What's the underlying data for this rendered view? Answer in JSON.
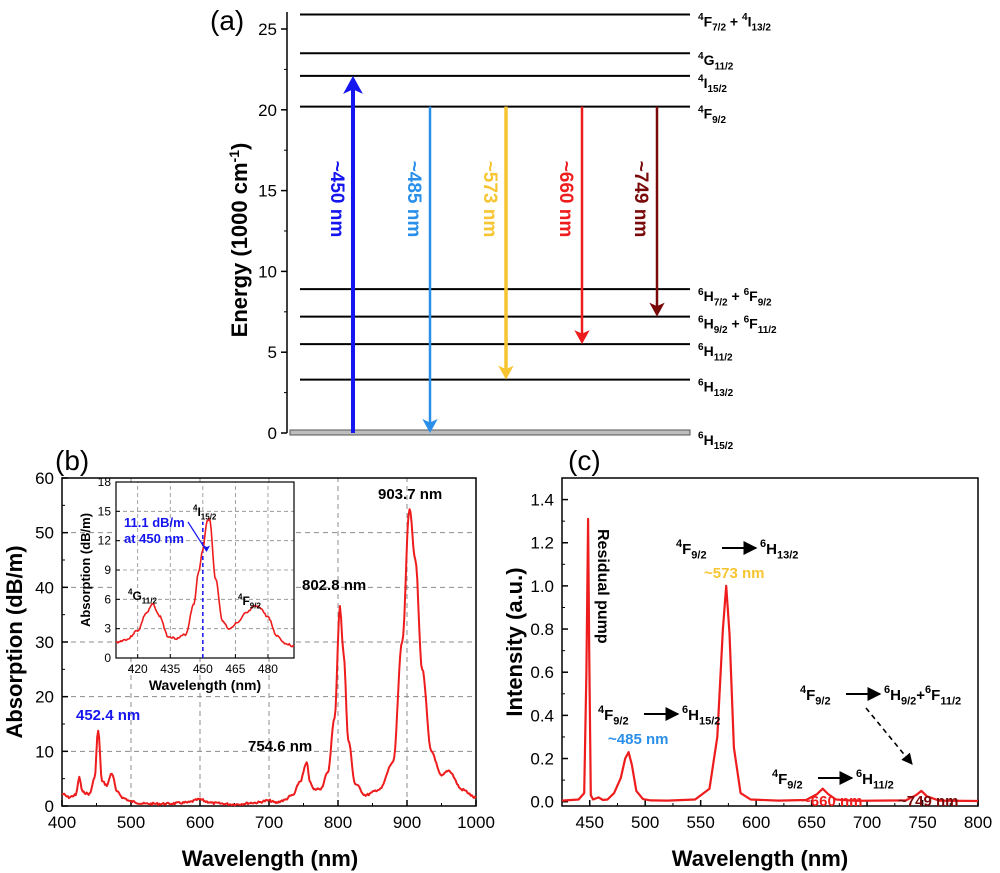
{
  "colors": {
    "blue": "#1515f0",
    "light_blue": "#2a8fe8",
    "yellow": "#f7c531",
    "red": "#ee1c1c",
    "dark_red": "#7a0a0a",
    "black": "#000000",
    "grid": "#8c8c8c",
    "ground": "#bdbdbd"
  },
  "chart_data": [
    {
      "type": "diagram",
      "panel_label": "(a)",
      "ylabel": "Energy (1000 cm",
      "ylabel_sup": "-1",
      "ylabel_close": ")",
      "ylim": [
        0,
        26
      ],
      "yticks": [
        "0",
        "5",
        "10",
        "15",
        "20",
        "25"
      ],
      "levels": [
        {
          "energy": 0.0,
          "term": "6H15/2",
          "label": [
            [
              "6",
              "sup"
            ],
            [
              "H",
              "n"
            ],
            [
              "15/2",
              "sub"
            ]
          ]
        },
        {
          "energy": 3.3,
          "term": "6H13/2",
          "label": [
            [
              "6",
              "sup"
            ],
            [
              "H",
              "n"
            ],
            [
              "13/2",
              "sub"
            ]
          ]
        },
        {
          "energy": 5.5,
          "term": "6H11/2",
          "label": [
            [
              "6",
              "sup"
            ],
            [
              "H",
              "n"
            ],
            [
              "11/2",
              "sub"
            ]
          ]
        },
        {
          "energy": 7.2,
          "term": "6H9/2 + 6F11/2",
          "label": [
            [
              "6",
              "sup"
            ],
            [
              "H",
              "n"
            ],
            [
              "9/2",
              "sub"
            ],
            [
              " + ",
              "n"
            ],
            [
              "6",
              "sup"
            ],
            [
              "F",
              "n"
            ],
            [
              "11/2",
              "sub"
            ]
          ]
        },
        {
          "energy": 8.9,
          "term": "6H7/2 + 6F9/2",
          "label": [
            [
              "6",
              "sup"
            ],
            [
              "H",
              "n"
            ],
            [
              "7/2",
              "sub"
            ],
            [
              " + ",
              "n"
            ],
            [
              "6",
              "sup"
            ],
            [
              "F",
              "n"
            ],
            [
              "9/2",
              "sub"
            ]
          ]
        },
        {
          "energy": 20.2,
          "term": "4F9/2",
          "label": [
            [
              "4",
              "sup"
            ],
            [
              "F",
              "n"
            ],
            [
              "9/2",
              "sub"
            ]
          ]
        },
        {
          "energy": 22.1,
          "term": "4I15/2",
          "label": [
            [
              "4",
              "sup"
            ],
            [
              "I",
              "n"
            ],
            [
              "15/2",
              "sub"
            ]
          ]
        },
        {
          "energy": 23.5,
          "term": "4G11/2",
          "label": [
            [
              "4",
              "sup"
            ],
            [
              "G",
              "n"
            ],
            [
              "11/2",
              "sub"
            ]
          ]
        },
        {
          "energy": 25.9,
          "term": "4F7/2 + 4I13/2",
          "label": [
            [
              "4",
              "sup"
            ],
            [
              "F",
              "n"
            ],
            [
              "7/2",
              "sub"
            ],
            [
              " + ",
              "n"
            ],
            [
              "4",
              "sup"
            ],
            [
              "I",
              "n"
            ],
            [
              "13/2",
              "sub"
            ]
          ]
        }
      ],
      "transitions": [
        {
          "label": "~450 nm",
          "from": 0.0,
          "to": 22.1,
          "direction": "up",
          "color": "blue"
        },
        {
          "label": "~485 nm",
          "from": 20.2,
          "to": 0.0,
          "direction": "down",
          "color": "light_blue"
        },
        {
          "label": "~573 nm",
          "from": 20.2,
          "to": 3.3,
          "direction": "down",
          "color": "yellow"
        },
        {
          "label": "~660 nm",
          "from": 20.2,
          "to": 5.5,
          "direction": "down",
          "color": "red"
        },
        {
          "label": "~749 nm",
          "from": 20.2,
          "to": 7.2,
          "direction": "down",
          "color": "dark_red"
        }
      ]
    },
    {
      "type": "line",
      "panel_label": "(b)",
      "xlabel": "Wavelength (nm)",
      "ylabel": "Absorption (dB/m)",
      "xlim": [
        400,
        1000
      ],
      "ylim": [
        0,
        60
      ],
      "xticks": [
        "400",
        "500",
        "600",
        "700",
        "800",
        "900",
        "1000"
      ],
      "yticks": [
        "0",
        "10",
        "20",
        "30",
        "40",
        "50",
        "60"
      ],
      "grid": "dashed",
      "series": [
        {
          "color": "red",
          "x": [
            400,
            410,
            420,
            425,
            430,
            440,
            447,
            452.4,
            458,
            465,
            472,
            480,
            490,
            500,
            520,
            550,
            580,
            600,
            610,
            620,
            650,
            680,
            700,
            710,
            720,
            735,
            745,
            754.6,
            760,
            765,
            775,
            785,
            795,
            802.8,
            808,
            815,
            825,
            840,
            860,
            880,
            893,
            903.7,
            912,
            922,
            935,
            950,
            960,
            980,
            1000
          ],
          "y": [
            2.2,
            1.6,
            2.0,
            5.2,
            2.5,
            2.2,
            5.0,
            13.8,
            4.5,
            3.8,
            6.0,
            2.5,
            1.4,
            0.8,
            0.4,
            0.4,
            0.6,
            1.2,
            0.8,
            0.5,
            0.3,
            0.6,
            1.0,
            0.6,
            1.0,
            2.0,
            4.5,
            7.8,
            4.2,
            3.0,
            3.2,
            6.0,
            16.0,
            36.5,
            28.0,
            12.0,
            4.0,
            2.0,
            3.0,
            8.0,
            30.0,
            54.5,
            45.0,
            25.0,
            10.0,
            5.5,
            6.5,
            3.0,
            1.5
          ]
        }
      ],
      "annotations": [
        {
          "text": "452.4 nm",
          "x": 452.4,
          "y": 13.8,
          "color": "blue"
        },
        {
          "text": "754.6 nm",
          "x": 754.6,
          "y": 7.8,
          "color": "black"
        },
        {
          "text": "802.8 nm",
          "x": 802.8,
          "y": 36.5,
          "color": "black"
        },
        {
          "text": "903.7 nm",
          "x": 903.7,
          "y": 54.5,
          "color": "black"
        }
      ],
      "inset": {
        "xlabel": "Wavelength (nm)",
        "ylabel": "Absorption (dB/m)",
        "xlim": [
          410,
          492
        ],
        "ylim": [
          0,
          18
        ],
        "xticks": [
          "420",
          "435",
          "450",
          "465",
          "480"
        ],
        "yticks": [
          "0",
          "3",
          "6",
          "9",
          "12",
          "15",
          "18"
        ],
        "grid": "dashed",
        "marker_x": 450,
        "annotation_lines": [
          "11.1 dB/m",
          "at 450 nm"
        ],
        "annotation_y": 11.1,
        "series": [
          {
            "color": "red",
            "x": [
              410,
              415,
              420,
              424,
              427,
              430,
              434,
              438,
              442,
              446,
              448,
              450,
              452,
              453,
              456,
              459,
              462,
              466,
              470,
              474,
              476,
              480,
              484,
              488,
              492
            ],
            "y": [
              1.6,
              1.9,
              2.8,
              4.6,
              5.5,
              4.3,
              2.2,
              2.0,
              2.4,
              5.6,
              8.8,
              11.1,
              14.0,
              14.2,
              8.0,
              3.8,
              3.0,
              3.6,
              4.6,
              5.3,
              5.2,
              4.2,
              2.3,
              1.5,
              1.2
            ]
          }
        ],
        "peak_labels": [
          {
            "x": 427,
            "y": 5.5,
            "label": [
              [
                "4",
                "sup"
              ],
              [
                "G",
                "n"
              ],
              [
                "11/2",
                "sub"
              ]
            ]
          },
          {
            "x": 452.4,
            "y": 14.2,
            "label": [
              [
                "4",
                "sup"
              ],
              [
                "I",
                "n"
              ],
              [
                "15/2",
                "sub"
              ]
            ]
          },
          {
            "x": 474,
            "y": 5.3,
            "label": [
              [
                "4",
                "sup"
              ],
              [
                "F",
                "n"
              ],
              [
                "9/2",
                "sub"
              ]
            ]
          }
        ]
      }
    },
    {
      "type": "line",
      "panel_label": "(c)",
      "xlabel": "Wavelength (nm)",
      "ylabel": "Intensity (a.u.)",
      "xlim": [
        425,
        800
      ],
      "ylim": [
        -0.02,
        1.5
      ],
      "xticks": [
        "450",
        "500",
        "550",
        "600",
        "650",
        "700",
        "750",
        "800"
      ],
      "yticks": [
        "0.0",
        "0.2",
        "0.4",
        "0.6",
        "0.8",
        "1.0",
        "1.2",
        "1.4"
      ],
      "grid": "none",
      "series": [
        {
          "color": "red",
          "x": [
            425,
            440,
            445,
            447,
            448.5,
            449.5,
            451,
            453,
            458,
            462,
            466,
            472,
            478,
            482,
            485,
            488,
            492,
            498,
            505,
            520,
            545,
            558,
            565,
            570,
            573,
            576,
            580,
            586,
            595,
            620,
            645,
            655,
            660,
            665,
            672,
            690,
            735,
            744,
            749,
            754,
            765,
            800
          ],
          "y": [
            0.005,
            0.01,
            0.04,
            0.6,
            1.31,
            0.7,
            0.03,
            0.01,
            0.02,
            0.008,
            0.01,
            0.04,
            0.11,
            0.2,
            0.23,
            0.17,
            0.05,
            0.012,
            0.006,
            0.005,
            0.01,
            0.06,
            0.3,
            0.8,
            1.0,
            0.78,
            0.25,
            0.04,
            0.01,
            0.005,
            0.008,
            0.035,
            0.06,
            0.035,
            0.01,
            0.004,
            0.006,
            0.03,
            0.05,
            0.025,
            0.005,
            0.003
          ]
        }
      ],
      "annotations": [
        {
          "text": "Residual pump",
          "x": 448.5,
          "y": 1.31,
          "rotated": true,
          "color": "black"
        },
        {
          "text": "~573 nm",
          "x": 573,
          "y": 1.0,
          "color": "yellow",
          "transition": [
            [
              [
                "4",
                "sup"
              ],
              [
                "F",
                "n"
              ],
              [
                "9/2",
                "sub"
              ]
            ],
            [
              [
                "6",
                "sup"
              ],
              [
                "H",
                "n"
              ],
              [
                "13/2",
                "sub"
              ]
            ]
          ]
        },
        {
          "text": "~485 nm",
          "x": 485,
          "y": 0.23,
          "color": "light_blue",
          "transition": [
            [
              [
                "4",
                "sup"
              ],
              [
                "F",
                "n"
              ],
              [
                "9/2",
                "sub"
              ]
            ],
            [
              [
                "6",
                "sup"
              ],
              [
                "H",
                "n"
              ],
              [
                "15/2",
                "sub"
              ]
            ]
          ]
        },
        {
          "text": "~660 nm",
          "x": 660,
          "y": 0.06,
          "color": "red",
          "transition": [
            [
              [
                "4",
                "sup"
              ],
              [
                "F",
                "n"
              ],
              [
                "9/2",
                "sub"
              ]
            ],
            [
              [
                "6",
                "sup"
              ],
              [
                "H",
                "n"
              ],
              [
                "11/2",
                "sub"
              ]
            ]
          ]
        },
        {
          "text": "~749 nm",
          "x": 749,
          "y": 0.05,
          "color": "dark_red",
          "transition": [
            [
              [
                "4",
                "sup"
              ],
              [
                "F",
                "n"
              ],
              [
                "9/2",
                "sub"
              ]
            ],
            [
              [
                "6",
                "sup"
              ],
              [
                "H",
                "n"
              ],
              [
                "9/2",
                "sub"
              ],
              [
                "+",
                "n"
              ],
              [
                "6",
                "sup"
              ],
              [
                "F",
                "n"
              ],
              [
                "11/2",
                "sub"
              ]
            ]
          ],
          "dashed_arrow": true
        }
      ]
    }
  ]
}
